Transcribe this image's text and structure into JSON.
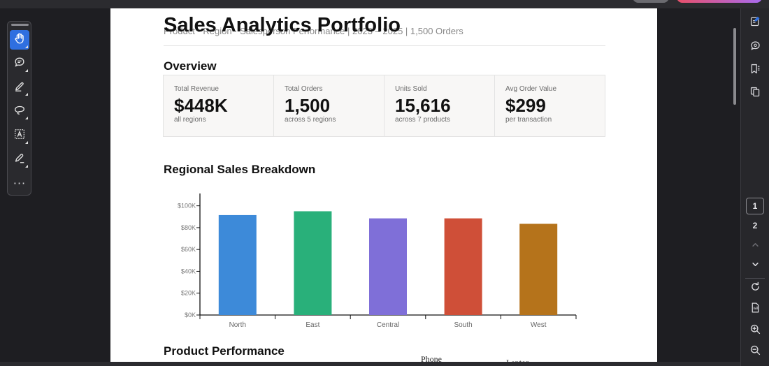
{
  "viewer": {
    "left_tools": [
      {
        "name": "hand-tool",
        "icon": "hand-icon",
        "active": true
      },
      {
        "name": "comment-tool",
        "icon": "comment-icon"
      },
      {
        "name": "highlight-tool",
        "icon": "pen-icon"
      },
      {
        "name": "draw-tool",
        "icon": "lasso-icon"
      },
      {
        "name": "text-tool",
        "icon": "text-box-icon"
      },
      {
        "name": "sign-tool",
        "icon": "signature-icon"
      },
      {
        "name": "more-tools",
        "icon": "more-icon"
      }
    ],
    "pages": [
      "1",
      "2"
    ],
    "current_page": "1",
    "right_tools": [
      "edit-pdf-icon",
      "comments-panel-icon",
      "bookmarks-icon",
      "pages-panel-icon",
      "chevron-up-icon",
      "chevron-down-icon",
      "refresh-icon",
      "document-icon",
      "zoom-in-icon",
      "zoom-out-icon"
    ]
  },
  "document": {
    "title": "Sales Analytics Portfolio",
    "subtitle": "Product · Region · Salesperson Performance | 2023 – 2025 | 1,500 Orders",
    "sections": {
      "overview": "Overview",
      "regional": "Regional Sales Breakdown",
      "product": "Product Performance"
    },
    "kpis": [
      {
        "label": "Total Revenue",
        "value": "$448K",
        "sub": "all regions"
      },
      {
        "label": "Total Orders",
        "value": "1,500",
        "sub": "across 5 regions"
      },
      {
        "label": "Units Sold",
        "value": "15,616",
        "sub": "across 7 products"
      },
      {
        "label": "Avg Order Value",
        "value": "$299",
        "sub": "per transaction"
      }
    ],
    "pie_labels": {
      "phone": "Phone",
      "laptop": "Laptop"
    }
  },
  "chart_data": {
    "type": "bar",
    "categories": [
      "North",
      "East",
      "Central",
      "South",
      "West"
    ],
    "values": [
      91500,
      95000,
      88500,
      88500,
      83500
    ],
    "colors": [
      "#3d8ad9",
      "#29b07a",
      "#7f6fd8",
      "#cf4f38",
      "#b5731b"
    ],
    "ylim": [
      0,
      110000
    ],
    "yticks": [
      0,
      20000,
      40000,
      60000,
      80000,
      100000
    ],
    "ytick_labels": [
      "$0K",
      "$20K",
      "$40K",
      "$60K",
      "$80K",
      "$100K"
    ],
    "xlabel": "",
    "ylabel": "",
    "grid": false
  }
}
